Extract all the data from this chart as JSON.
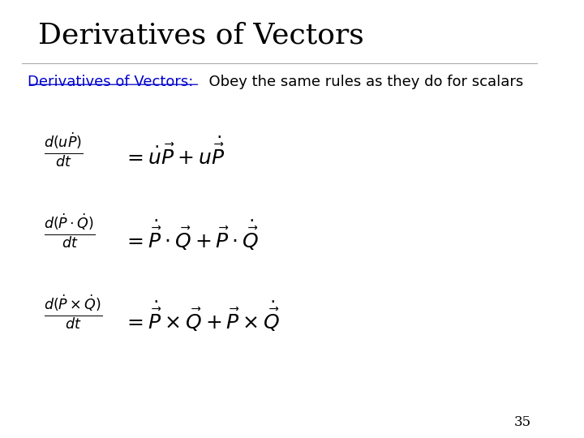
{
  "title": "Derivatives of Vectors",
  "subtitle_underline": "Derivatives of Vectors:",
  "subtitle_text": "  Obey the same rules as they do for scalars",
  "page_number": "35",
  "background_color": "#ffffff",
  "title_color": "#000000",
  "subtitle_link_color": "#0000cc",
  "formula1_lhs": "frac_uP",
  "formula2_lhs": "frac_PdotQ",
  "formula3_lhs": "frac_PcrossQ"
}
